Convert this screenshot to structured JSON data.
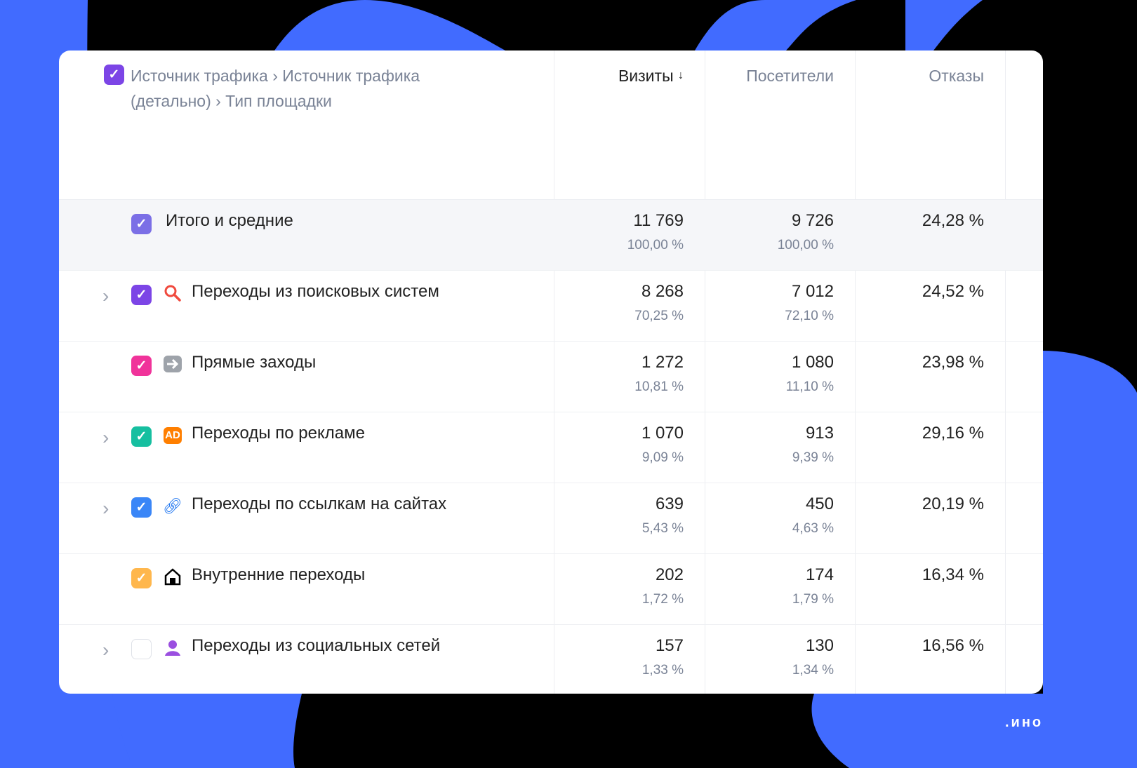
{
  "header": {
    "dimension": "Источник трафика › Источник трафика (детально) › Тип площадки",
    "columns": [
      "Визиты",
      "Посетители",
      "Отказы"
    ],
    "sort_indicator": "↓"
  },
  "total": {
    "label": "Итого и средние",
    "visits": "11 769",
    "visits_pct": "100,00 %",
    "visitors": "9 726",
    "visitors_pct": "100,00 %",
    "bounce": "24,28 %",
    "checkbox_color": "#7b6fe6"
  },
  "rows": [
    {
      "label": "Переходы из поисковых систем",
      "icon": "search-icon",
      "expandable": true,
      "checked": true,
      "color": "#7c45e6",
      "visits": "8 268",
      "visits_pct": "70,25 %",
      "visitors": "7 012",
      "visitors_pct": "72,10 %",
      "bounce": "24,52 %"
    },
    {
      "label": "Прямые заходы",
      "icon": "arrow-right-icon",
      "expandable": false,
      "checked": true,
      "color": "#f0339a",
      "visits": "1 272",
      "visits_pct": "10,81 %",
      "visitors": "1 080",
      "visitors_pct": "11,10 %",
      "bounce": "23,98 %"
    },
    {
      "label": "Переходы по рекламе",
      "icon": "ad-icon",
      "icon_text": "AD",
      "expandable": true,
      "checked": true,
      "color": "#16bfa0",
      "visits": "1 070",
      "visits_pct": "9,09 %",
      "visitors": "913",
      "visitors_pct": "9,39 %",
      "bounce": "29,16 %"
    },
    {
      "label": "Переходы по ссылкам на сайтах",
      "icon": "link-icon",
      "expandable": true,
      "checked": true,
      "color": "#3a86f7",
      "visits": "639",
      "visits_pct": "5,43 %",
      "visitors": "450",
      "visitors_pct": "4,63 %",
      "bounce": "20,19 %"
    },
    {
      "label": "Внутренние переходы",
      "icon": "house-icon",
      "expandable": false,
      "checked": true,
      "color": "#ffb74d",
      "visits": "202",
      "visits_pct": "1,72 %",
      "visitors": "174",
      "visitors_pct": "1,79 %",
      "bounce": "16,34 %"
    },
    {
      "label": "Переходы из социальных сетей",
      "icon": "user-icon",
      "expandable": true,
      "checked": false,
      "color": "#ffffff",
      "visits": "157",
      "visits_pct": "1,33 %",
      "visitors": "130",
      "visitors_pct": "1,34 %",
      "bounce": "16,56 %"
    }
  ],
  "logo": ".ино",
  "colors": {
    "accent_blue": "#416bff",
    "background": "#000000"
  }
}
